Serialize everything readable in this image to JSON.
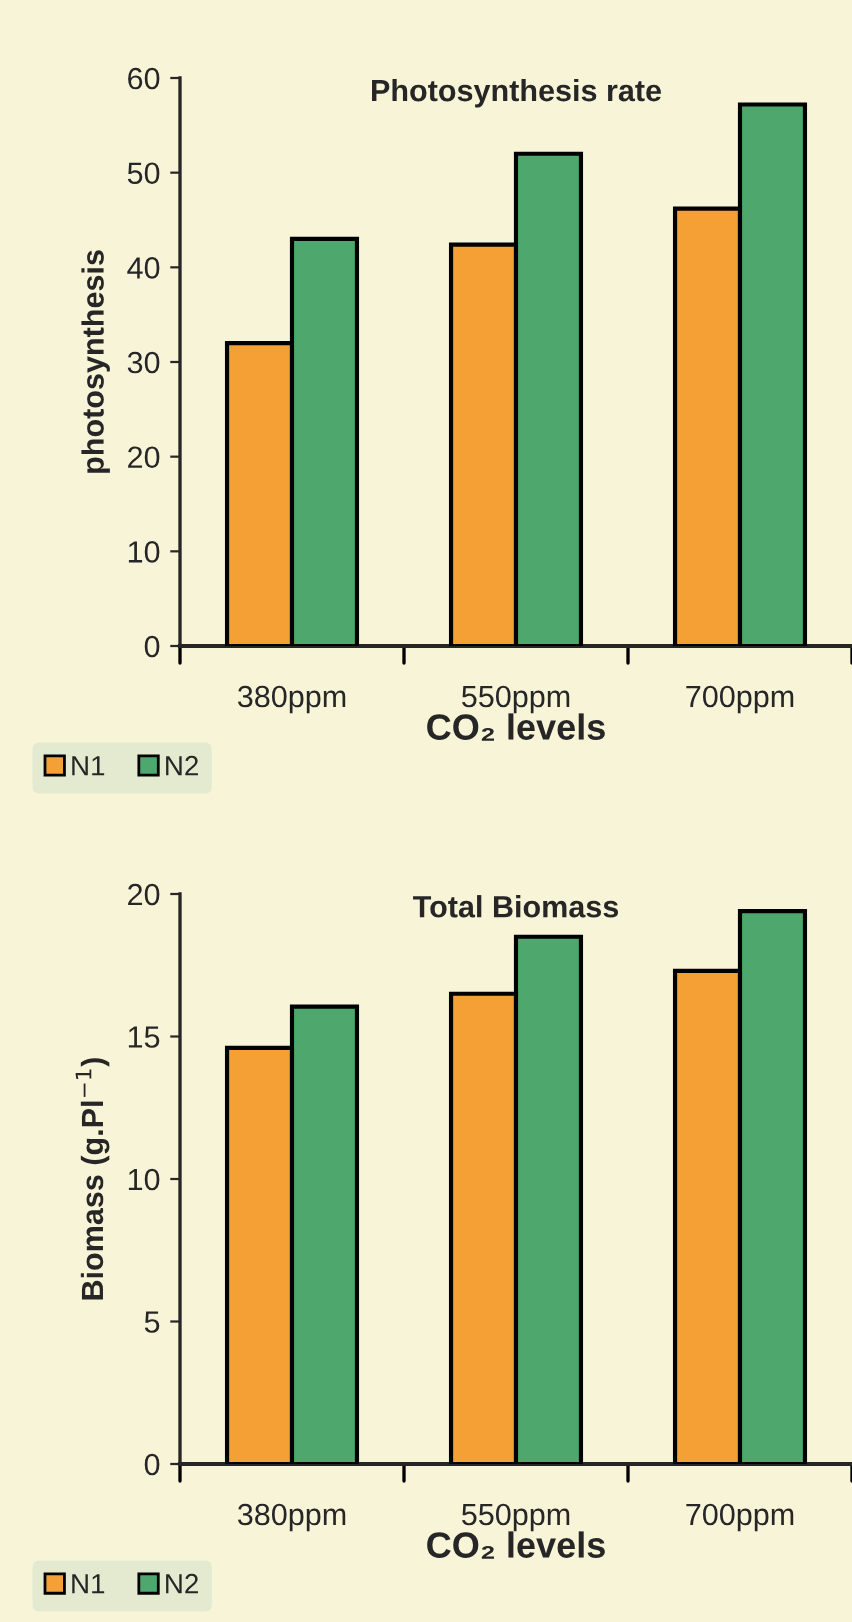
{
  "chart_data": [
    {
      "type": "bar",
      "title": "Photosynthesis rate",
      "xlabel": "CO₂ levels",
      "ylabel": "photosynthesis",
      "categories": [
        "380ppm",
        "550ppm",
        "700ppm"
      ],
      "series": [
        {
          "name": "N1",
          "color": "#f4a035",
          "values": [
            32,
            42.4,
            46.2
          ]
        },
        {
          "name": "N2",
          "color": "#4ea86e",
          "values": [
            43,
            52,
            57.2
          ]
        }
      ],
      "ylim": [
        0,
        60
      ],
      "yticks": [
        0,
        10,
        20,
        30,
        40,
        50,
        60
      ],
      "legend": "bottom left",
      "grid": false
    },
    {
      "type": "bar",
      "title": "Total Biomass",
      "xlabel": "CO₂ levels",
      "ylabel": "Biomass (g.Pl$^{−1}$)",
      "categories": [
        "380ppm",
        "550ppm",
        "700ppm"
      ],
      "series": [
        {
          "name": "N1",
          "color": "#f4a035",
          "values": [
            14.6,
            16.5,
            17.3
          ]
        },
        {
          "name": "N2",
          "color": "#4ea86e",
          "values": [
            16.05,
            18.5,
            19.4
          ]
        }
      ],
      "ylim": [
        0,
        20
      ],
      "yticks": [
        0,
        5,
        10,
        15,
        20
      ],
      "legend": "bottom left",
      "grid": false
    }
  ]
}
